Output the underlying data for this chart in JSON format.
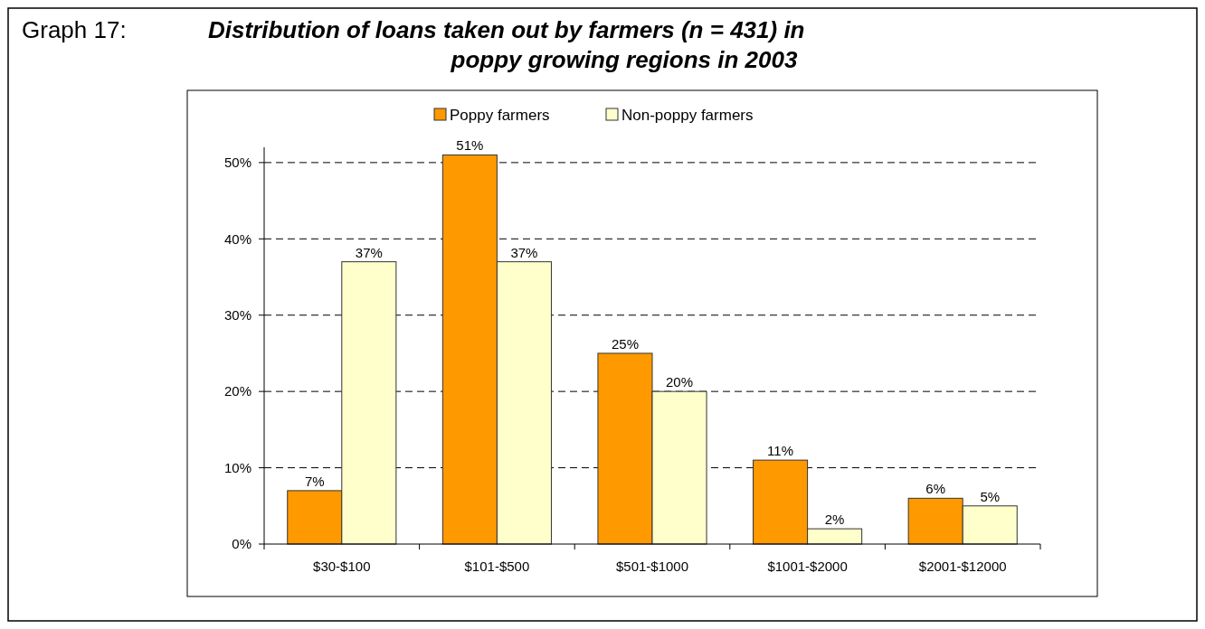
{
  "chart_data": {
    "type": "bar",
    "title": "Distribution of loans taken out by farmers (n = 431) in poppy growing regions in 2003",
    "annotations": [
      "Graph 17:"
    ],
    "categories": [
      "$30-$100",
      "$101-$500",
      "$501-$1000",
      "$1001-$2000",
      "$2001-$12000"
    ],
    "series": [
      {
        "name": "Poppy farmers",
        "color": "#ff9900",
        "values": [
          7,
          51,
          25,
          11,
          6
        ],
        "value_labels": [
          "7%",
          "51%",
          "25%",
          "11%",
          "6%"
        ]
      },
      {
        "name": "Non-poppy farmers",
        "color": "#ffffcc",
        "values": [
          37,
          37,
          20,
          2,
          5
        ],
        "value_labels": [
          "37%",
          "37%",
          "20%",
          "2%",
          "5%"
        ]
      }
    ],
    "ylim": [
      0,
      52
    ],
    "yticks": [
      {
        "value": 0,
        "label": "0%"
      },
      {
        "value": 10,
        "label": "10%"
      },
      {
        "value": 20,
        "label": "20%"
      },
      {
        "value": 30,
        "label": "30%"
      },
      {
        "value": 40,
        "label": "40%"
      },
      {
        "value": 50,
        "label": "50%"
      }
    ],
    "grid": "y",
    "legend": "top",
    "line_style": "dashed"
  }
}
